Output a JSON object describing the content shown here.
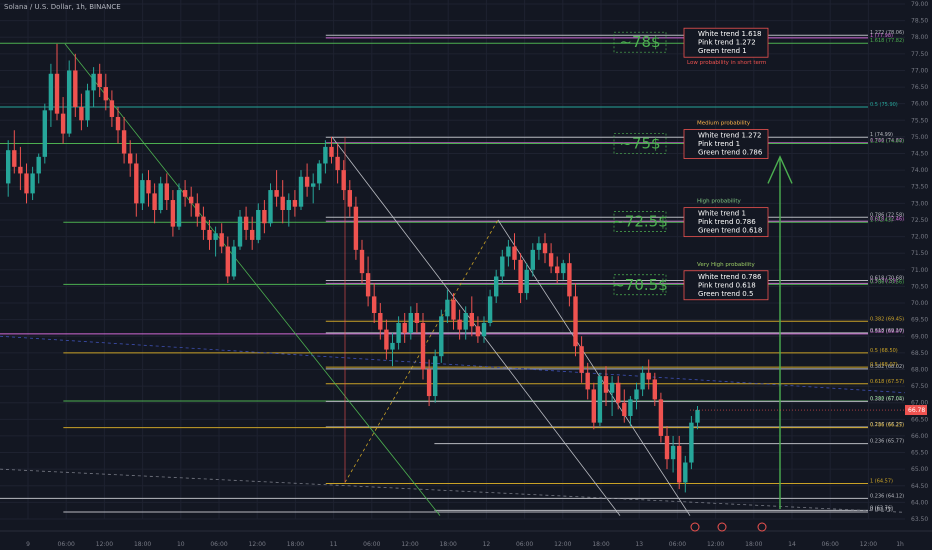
{
  "header": {
    "title": "Solana / U.S. Dollar, 1h, BINANCE"
  },
  "colors": {
    "background": "#131722",
    "grid": "#1e2230",
    "bull": "#26a69a",
    "bear": "#ef5350",
    "green_fib": "#4caf50",
    "pink_fib": "#d16ad6",
    "white_fib": "#b8bac0",
    "gold_fib": "#c9a227",
    "axis_text": "#787b86",
    "price_tag": "#ef5350"
  },
  "chart_data": {
    "type": "candlestick",
    "title": "Solana / U.S. Dollar, 1h, BINANCE",
    "ylim": [
      63.5,
      79.0
    ],
    "y_ticks": [
      "63.50",
      "64.00",
      "64.50",
      "65.00",
      "65.50",
      "66.00",
      "66.50",
      "67.00",
      "67.50",
      "68.00",
      "68.50",
      "69.00",
      "69.50",
      "70.00",
      "70.50",
      "71.00",
      "71.50",
      "72.00",
      "72.50",
      "73.00",
      "73.50",
      "74.00",
      "74.50",
      "75.00",
      "75.50",
      "76.00",
      "76.50",
      "77.00",
      "77.50",
      "78.00",
      "78.50",
      "79.00"
    ],
    "x_ticks": [
      "9",
      "06:00",
      "12:00",
      "18:00",
      "10",
      "06:00",
      "12:00",
      "18:00",
      "11",
      "06:00",
      "12:00",
      "18:00",
      "12",
      "06:00",
      "12:00",
      "18:00",
      "13",
      "06:00",
      "12:00",
      "18:00",
      "14",
      "06:00",
      "12:00",
      "1h"
    ],
    "current_price": "66.78",
    "candles": [
      [
        73.6,
        74.9,
        73.2,
        74.6
      ],
      [
        74.6,
        75.2,
        73.9,
        74.1
      ],
      [
        74.1,
        74.7,
        73.4,
        73.9
      ],
      [
        73.9,
        74.2,
        73.0,
        73.3
      ],
      [
        73.3,
        74.1,
        73.1,
        73.9
      ],
      [
        73.9,
        74.5,
        73.6,
        74.4
      ],
      [
        74.4,
        76.0,
        74.2,
        75.8
      ],
      [
        75.8,
        77.2,
        75.3,
        76.9
      ],
      [
        76.9,
        77.8,
        75.5,
        75.7
      ],
      [
        75.7,
        76.2,
        74.8,
        75.1
      ],
      [
        75.1,
        77.3,
        75.0,
        77.0
      ],
      [
        77.0,
        77.5,
        75.6,
        75.9
      ],
      [
        75.9,
        76.3,
        75.2,
        75.5
      ],
      [
        75.5,
        76.6,
        75.3,
        76.4
      ],
      [
        76.4,
        77.1,
        75.9,
        76.9
      ],
      [
        76.9,
        77.2,
        76.2,
        76.5
      ],
      [
        76.5,
        76.9,
        75.8,
        76.1
      ],
      [
        76.1,
        76.4,
        75.3,
        75.6
      ],
      [
        75.6,
        75.9,
        74.8,
        75.2
      ],
      [
        75.2,
        75.6,
        74.2,
        74.5
      ],
      [
        74.5,
        74.9,
        73.8,
        74.2
      ],
      [
        74.2,
        74.5,
        72.6,
        73.0
      ],
      [
        73.0,
        73.9,
        72.8,
        73.7
      ],
      [
        73.7,
        74.0,
        72.9,
        73.3
      ],
      [
        73.3,
        73.6,
        72.4,
        72.8
      ],
      [
        72.8,
        73.8,
        72.7,
        73.6
      ],
      [
        73.6,
        73.9,
        72.8,
        73.1
      ],
      [
        73.1,
        73.4,
        72.0,
        72.3
      ],
      [
        72.3,
        73.6,
        72.2,
        73.4
      ],
      [
        73.4,
        73.7,
        72.9,
        73.2
      ],
      [
        73.2,
        73.5,
        72.6,
        73.0
      ],
      [
        73.0,
        73.3,
        72.3,
        72.6
      ],
      [
        72.6,
        72.9,
        71.9,
        72.2
      ],
      [
        72.2,
        72.5,
        71.6,
        71.9
      ],
      [
        71.9,
        72.3,
        71.4,
        72.1
      ],
      [
        72.1,
        72.4,
        71.5,
        71.7
      ],
      [
        71.7,
        72.0,
        70.6,
        70.8
      ],
      [
        70.8,
        71.9,
        70.7,
        71.7
      ],
      [
        71.7,
        72.8,
        71.6,
        72.6
      ],
      [
        72.6,
        72.9,
        71.9,
        72.2
      ],
      [
        72.2,
        72.6,
        71.6,
        71.9
      ],
      [
        71.9,
        73.0,
        71.8,
        72.8
      ],
      [
        72.8,
        73.1,
        72.1,
        72.4
      ],
      [
        72.4,
        73.6,
        72.3,
        73.4
      ],
      [
        73.4,
        74.0,
        72.9,
        73.2
      ],
      [
        73.2,
        73.7,
        72.4,
        72.8
      ],
      [
        72.8,
        73.3,
        72.3,
        73.1
      ],
      [
        73.1,
        73.4,
        72.6,
        72.9
      ],
      [
        72.9,
        74.0,
        72.8,
        73.8
      ],
      [
        73.8,
        74.2,
        73.2,
        73.5
      ],
      [
        73.5,
        73.9,
        73.0,
        73.6
      ],
      [
        73.6,
        74.3,
        73.4,
        74.2
      ],
      [
        74.2,
        74.9,
        73.9,
        74.7
      ],
      [
        74.7,
        75.0,
        74.2,
        74.4
      ],
      [
        74.4,
        74.8,
        73.6,
        74.0
      ],
      [
        74.0,
        74.3,
        73.1,
        73.4
      ],
      [
        73.4,
        73.7,
        72.6,
        72.9
      ],
      [
        72.9,
        73.2,
        71.3,
        71.6
      ],
      [
        71.6,
        71.9,
        70.6,
        70.9
      ],
      [
        70.9,
        71.4,
        69.9,
        70.2
      ],
      [
        70.2,
        70.6,
        69.4,
        69.7
      ],
      [
        69.7,
        70.0,
        68.9,
        69.2
      ],
      [
        69.2,
        69.5,
        68.3,
        68.6
      ],
      [
        68.6,
        69.1,
        68.1,
        68.8
      ],
      [
        68.8,
        69.6,
        68.6,
        69.4
      ],
      [
        69.4,
        69.7,
        68.8,
        69.1
      ],
      [
        69.1,
        69.9,
        68.9,
        69.7
      ],
      [
        69.7,
        70.0,
        69.1,
        69.4
      ],
      [
        69.4,
        69.7,
        67.7,
        68.0
      ],
      [
        68.0,
        68.3,
        66.9,
        67.2
      ],
      [
        67.2,
        68.6,
        67.0,
        68.4
      ],
      [
        68.4,
        69.8,
        68.2,
        69.6
      ],
      [
        69.6,
        70.4,
        69.4,
        70.1
      ],
      [
        70.1,
        70.3,
        69.2,
        69.5
      ],
      [
        69.5,
        69.8,
        68.9,
        69.2
      ],
      [
        69.2,
        69.9,
        68.9,
        69.7
      ],
      [
        69.7,
        70.2,
        69.0,
        69.3
      ],
      [
        69.3,
        69.6,
        68.8,
        69.0
      ],
      [
        69.0,
        69.6,
        68.8,
        69.4
      ],
      [
        69.4,
        70.4,
        69.3,
        70.2
      ],
      [
        70.2,
        71.0,
        70.0,
        70.8
      ],
      [
        70.8,
        71.6,
        70.6,
        71.4
      ],
      [
        71.4,
        71.9,
        71.1,
        71.7
      ],
      [
        71.7,
        72.1,
        71.0,
        71.3
      ],
      [
        71.3,
        71.5,
        70.0,
        70.3
      ],
      [
        70.3,
        71.2,
        70.1,
        71.0
      ],
      [
        71.0,
        71.8,
        70.8,
        71.6
      ],
      [
        71.6,
        72.0,
        71.3,
        71.8
      ],
      [
        71.8,
        72.1,
        71.2,
        71.5
      ],
      [
        71.5,
        71.8,
        70.9,
        71.1
      ],
      [
        71.1,
        71.4,
        70.6,
        70.9
      ],
      [
        70.9,
        71.3,
        70.7,
        71.2
      ],
      [
        71.2,
        71.5,
        69.9,
        70.2
      ],
      [
        70.2,
        70.6,
        68.4,
        68.7
      ],
      [
        68.7,
        69.0,
        67.6,
        67.9
      ],
      [
        67.9,
        68.2,
        67.1,
        67.4
      ],
      [
        67.4,
        67.6,
        66.2,
        66.4
      ],
      [
        66.4,
        67.9,
        66.3,
        67.8
      ],
      [
        67.8,
        68.1,
        66.9,
        67.3
      ],
      [
        67.3,
        67.8,
        66.6,
        67.6
      ],
      [
        67.6,
        67.8,
        66.8,
        67.0
      ],
      [
        67.0,
        67.4,
        66.4,
        66.6
      ],
      [
        66.6,
        67.2,
        66.3,
        67.1
      ],
      [
        67.1,
        67.6,
        66.8,
        67.4
      ],
      [
        67.4,
        68.1,
        67.2,
        67.9
      ],
      [
        67.9,
        68.3,
        67.4,
        67.7
      ],
      [
        67.7,
        67.9,
        66.9,
        67.1
      ],
      [
        67.1,
        67.3,
        65.8,
        66.0
      ],
      [
        66.0,
        66.3,
        65.0,
        65.3
      ],
      [
        65.3,
        66.0,
        64.9,
        65.7
      ],
      [
        65.7,
        66.0,
        64.4,
        64.6
      ],
      [
        64.6,
        65.4,
        64.3,
        65.2
      ],
      [
        65.2,
        66.6,
        65.0,
        66.4
      ],
      [
        66.4,
        66.9,
        66.2,
        66.78
      ]
    ],
    "levels": [
      {
        "price": 77.82,
        "color": "green",
        "x1": 0,
        "label": "1.618 (77.82)"
      },
      {
        "price": 77.98,
        "color": "pink",
        "x1": 0.36,
        "label": "1 (77.98)"
      },
      {
        "price": 78.06,
        "color": "white",
        "x1": 0.36,
        "label": "1.272 (78.06)"
      },
      {
        "price": 75.9,
        "color": "teal",
        "x1": 0,
        "label": "0.5 (75.90)"
      },
      {
        "price": 74.99,
        "color": "white",
        "x1": 0.36,
        "label": "1 (74.99)"
      },
      {
        "price": 74.82,
        "color": "pink",
        "x1": 0.36,
        "label": "0.786 (74.82)"
      },
      {
        "price": 74.8,
        "color": "green",
        "x1": 0,
        "label": "1.272 (74.80)"
      },
      {
        "price": 72.58,
        "color": "white",
        "x1": 0.36,
        "label": "0.786 (72.58)"
      },
      {
        "price": 72.46,
        "color": "pink",
        "x1": 0.36,
        "label": "0.618 (72.46)"
      },
      {
        "price": 72.43,
        "color": "green",
        "x1": 0.07,
        "label": "1 (72.43)"
      },
      {
        "price": 70.68,
        "color": "white",
        "x1": 0.36,
        "label": "0.618 (70.68)"
      },
      {
        "price": 70.59,
        "color": "pink",
        "x1": 0.36,
        "label": "0.5 (70.59)"
      },
      {
        "price": 70.56,
        "color": "green",
        "x1": 0.07,
        "label": "0.786 (70.56)"
      },
      {
        "price": 69.45,
        "color": "gold",
        "x1": 0.36,
        "label": "0.382 (69.45)"
      },
      {
        "price": 69.07,
        "color": "pink",
        "x1": 0,
        "label": "0.382 (69.07)"
      },
      {
        "price": 69.1,
        "color": "white",
        "x1": 0.36,
        "label": "0.618 (69.10)"
      },
      {
        "price": 68.5,
        "color": "gold",
        "x1": 0.07,
        "label": "0.5 (68.50)"
      },
      {
        "price": 68.02,
        "color": "white",
        "x1": 0.36,
        "label": "0.382 (68.02)"
      },
      {
        "price": 68.07,
        "color": "gold",
        "x1": 0.36,
        "label": "0.5 (68.07)"
      },
      {
        "price": 67.57,
        "color": "gold",
        "x1": 0.36,
        "label": "0.618 (67.57)"
      },
      {
        "price": 67.05,
        "color": "green",
        "x1": 0.07,
        "label": "0.236 (67.05)"
      },
      {
        "price": 67.04,
        "color": "white",
        "x1": 0.36,
        "label": "0.382 (67.04)"
      },
      {
        "price": 66.27,
        "color": "white",
        "x1": 0.36,
        "label": "0.236 (66.27)"
      },
      {
        "price": 66.25,
        "color": "gold",
        "x1": 0.07,
        "label": "0.786 (66.25)"
      },
      {
        "price": 65.77,
        "color": "white",
        "x1": 0.48,
        "label": "0.236 (65.77)"
      },
      {
        "price": 64.57,
        "color": "gold",
        "x1": 0.36,
        "label": "1 (64.57)"
      },
      {
        "price": 64.12,
        "color": "white",
        "x1": 0,
        "label": "0.236 (64.12)"
      },
      {
        "price": 63.76,
        "color": "white",
        "x1": 0.48,
        "label": "0 (63.76)"
      },
      {
        "price": 63.71,
        "color": "white",
        "x1": 0.07,
        "label": "0 (63.71)"
      }
    ],
    "targets": [
      {
        "price_label": "~78$",
        "price": 77.85,
        "lines": [
          "White trend 1.618",
          "Pink trend 1.272",
          "Green trend 1"
        ],
        "probability": "Low  probability in short term",
        "prob_color": "#ef5350",
        "prob_pos": "below"
      },
      {
        "price_label": "~75$",
        "price": 74.8,
        "lines": [
          "White trend 1.272",
          "Pink trend 1",
          "Green trend 0.786"
        ],
        "probability": "Medium probability",
        "prob_color": "#ffb74d",
        "prob_pos": "above"
      },
      {
        "price_label": "~72.5$",
        "price": 72.45,
        "lines": [
          "White trend 1",
          "Pink trend 0.786",
          "Green trend 0.618"
        ],
        "probability": "High probability",
        "prob_color": "#81c784",
        "prob_pos": "above"
      },
      {
        "price_label": "~70.5$",
        "price": 70.55,
        "lines": [
          "White trend 0.786",
          "Pink trend 0.618",
          "Green trend 0.5"
        ],
        "probability": "Very High probability",
        "prob_color": "#9ccc65",
        "prob_pos": "above"
      }
    ]
  }
}
